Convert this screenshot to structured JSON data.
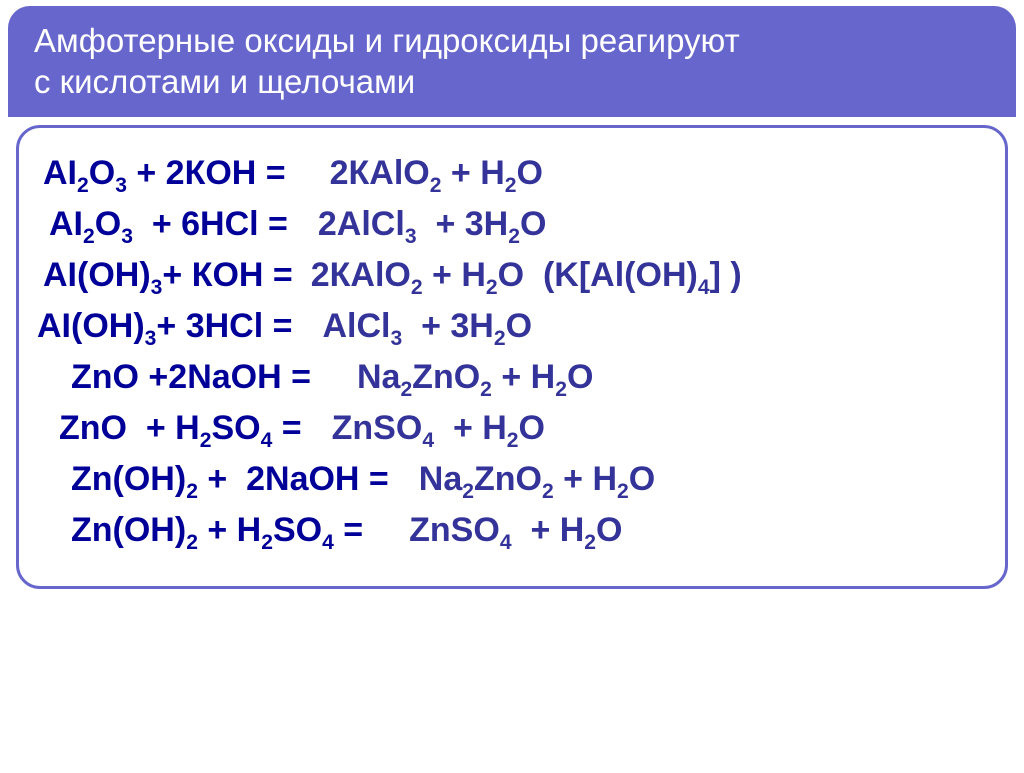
{
  "header": {
    "line1": "Амфотерные оксиды и гидроксиды реагируют",
    "line2": "с кислотами и щелочами"
  },
  "colors": {
    "header_bg": "#6666cc",
    "header_text": "#ffffff",
    "lhs_text": "#000099",
    "rhs_text": "#333399",
    "frame_border": "#6666cc",
    "page_bg": "#ffffff"
  },
  "typography": {
    "header_fontsize_pt": 25,
    "equation_fontsize_pt": 26,
    "equation_weight": "bold"
  },
  "equations": [
    {
      "lhs_html": "AI<sub>2</sub>O<sub>3</sub> + 2КОН =",
      "rhs_html": "2КАlO<sub>2</sub> + H<sub>2</sub>O",
      "lhs_indent": "indent-a",
      "gap": "gap-a"
    },
    {
      "lhs_html": "AI<sub>2</sub>O<sub>3</sub>&nbsp;&nbsp;+ 6HCl =",
      "rhs_html": "2AlCl<sub>3</sub>&nbsp;&nbsp;+ 3H<sub>2</sub>O",
      "lhs_indent": "indent-b",
      "gap": "gap-b"
    },
    {
      "lhs_html": "AI(OH)<sub>3</sub>+ КОН =",
      "rhs_html": "2КАlO<sub>2</sub> + H<sub>2</sub>O&nbsp;&nbsp;(K[Al(OH)<sub>4</sub>] )",
      "lhs_indent": "indent-a",
      "gap": "gap-c"
    },
    {
      "lhs_html": "AI(OH)<sub>3</sub>+ 3HCl =",
      "rhs_html": "AlCl<sub>3</sub>&nbsp;&nbsp;+ 3H<sub>2</sub>O",
      "lhs_indent": "indent-c",
      "gap": "gap-b"
    },
    {
      "lhs_html": "ZnO +2NaOH =",
      "rhs_html": "Na<sub>2</sub>ZnO<sub>2</sub> + H<sub>2</sub>O",
      "lhs_indent": "indent-d",
      "gap": "gap-d"
    },
    {
      "lhs_html": "ZnO&nbsp;&nbsp;+ H<sub>2</sub>SO<sub>4</sub> =",
      "rhs_html": "ZnSO<sub>4</sub>&nbsp;&nbsp;+ H<sub>2</sub>O",
      "lhs_indent": "indent-e",
      "gap": "gap-b"
    },
    {
      "lhs_html": "Zn(OH)<sub>2</sub> +&nbsp;&nbsp;2NaOH =",
      "rhs_html": "Na<sub>2</sub>ZnO<sub>2</sub> + H<sub>2</sub>O",
      "lhs_indent": "indent-d",
      "gap": "gap-b"
    },
    {
      "lhs_html": "Zn(OH)<sub>2</sub> + H<sub>2</sub>SO<sub>4</sub> =",
      "rhs_html": "ZnSO<sub>4</sub>&nbsp;&nbsp;+ H<sub>2</sub>O",
      "lhs_indent": "indent-d",
      "gap": "gap-d"
    }
  ]
}
